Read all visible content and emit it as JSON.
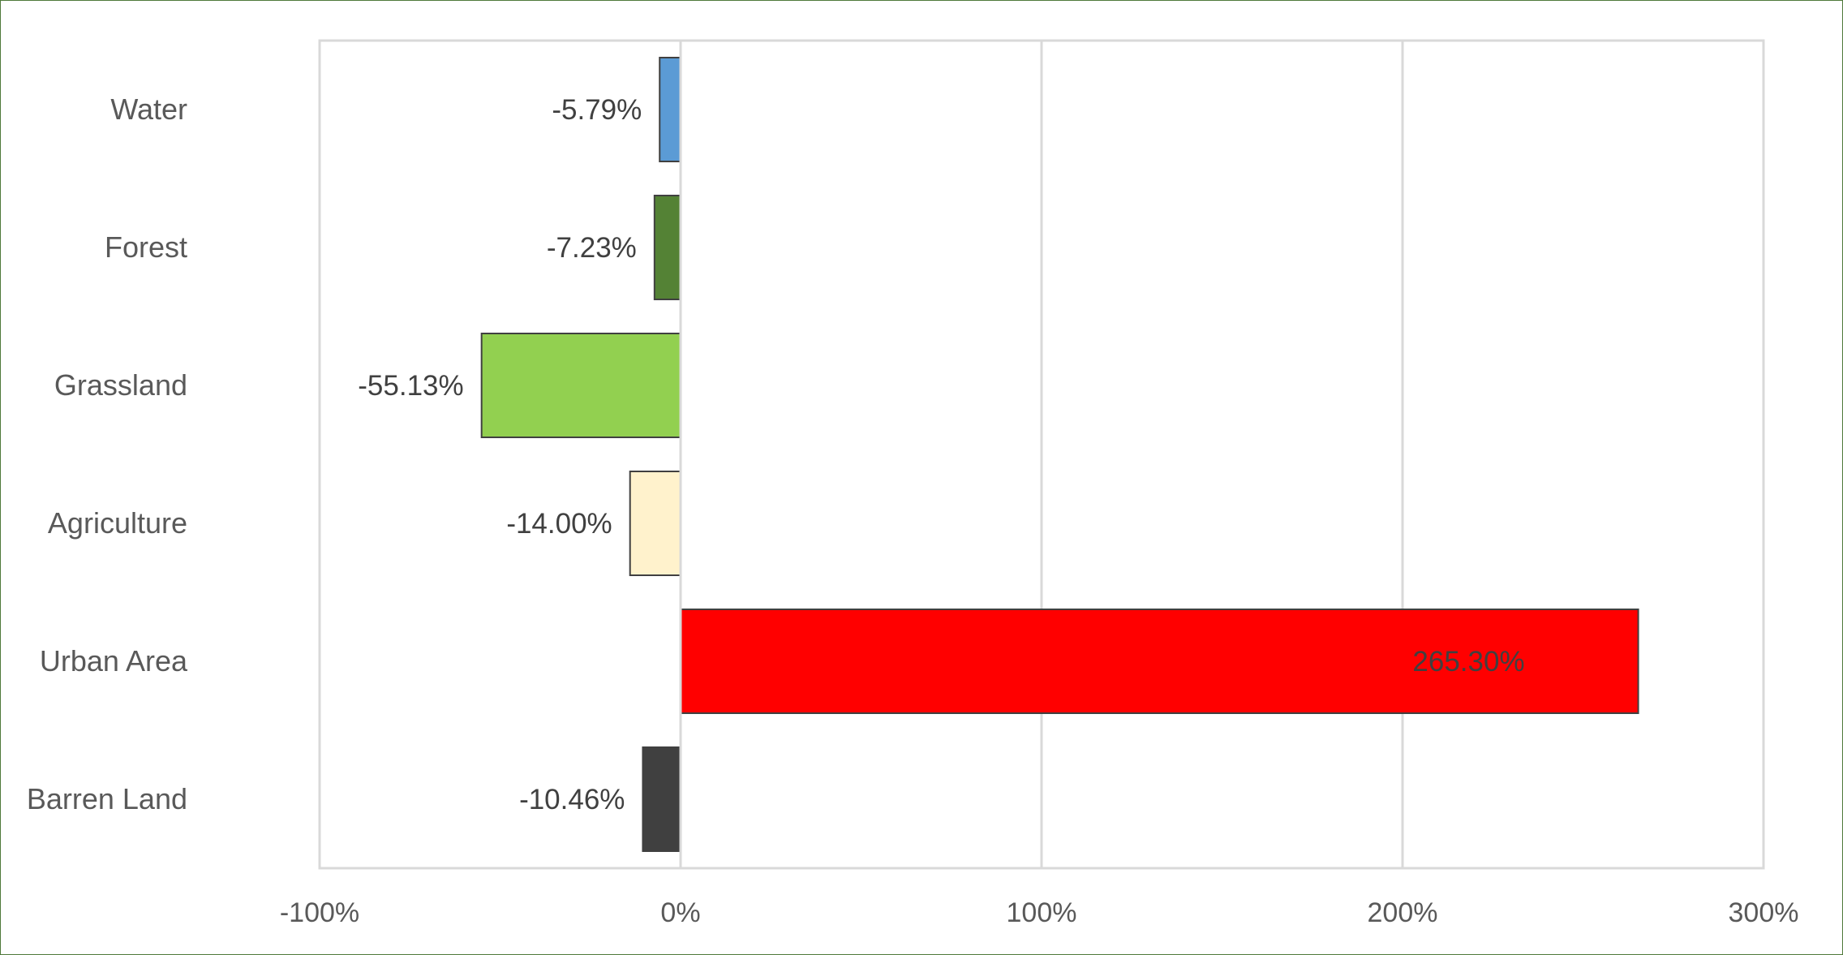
{
  "chart_data": {
    "type": "bar",
    "orientation": "horizontal",
    "categories": [
      "Water",
      "Forest",
      "Grassland",
      "Agriculture",
      "Urban Area",
      "Barren Land"
    ],
    "values": [
      -5.79,
      -7.23,
      -55.13,
      -14.0,
      265.3,
      -10.46
    ],
    "data_labels": [
      "-5.79%",
      "-7.23%",
      "-55.13%",
      "-14.00%",
      "265.30%",
      "-10.46%"
    ],
    "bar_colors": [
      "#5b9bd5",
      "#548235",
      "#92d050",
      "#fff2cc",
      "#ff0000",
      "#404040"
    ],
    "data_label_colors": [
      "#404040",
      "#404040",
      "#404040",
      "#404040",
      "#ffffff",
      "#404040"
    ],
    "xlim": [
      -100,
      300
    ],
    "xticks": [
      -100,
      0,
      100,
      200,
      300
    ],
    "xtick_labels": [
      "-100%",
      "0%",
      "100%",
      "200%",
      "300%"
    ],
    "title": "",
    "xlabel": "",
    "ylabel": "",
    "grid": true,
    "legend": "none"
  }
}
